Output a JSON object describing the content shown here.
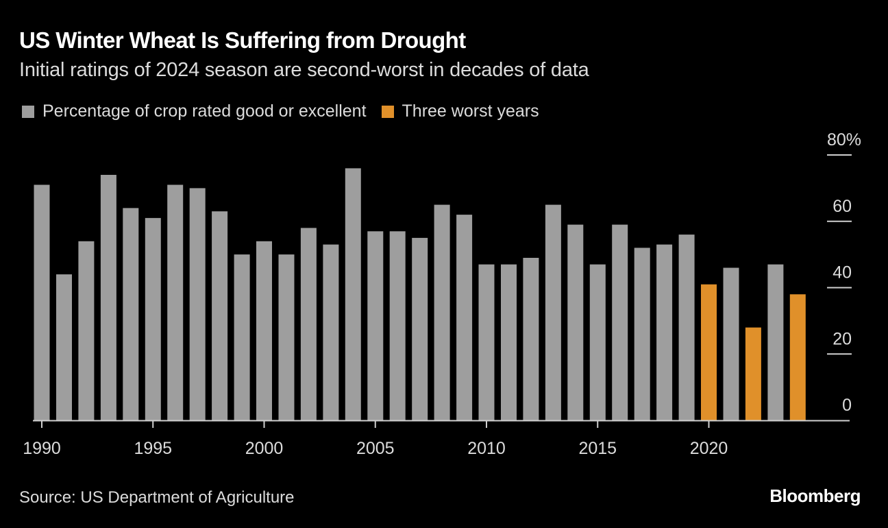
{
  "title": "US Winter Wheat Is Suffering from Drought",
  "subtitle": "Initial ratings of 2024 season are second-worst in decades of data",
  "legend": [
    {
      "label": "Percentage of crop rated good or excellent",
      "color": "#9e9e9e"
    },
    {
      "label": "Three worst years",
      "color": "#e0902a"
    }
  ],
  "source": "Source: US Department of Agriculture",
  "brand": "Bloomberg",
  "chart_data": {
    "type": "bar",
    "title": "US Winter Wheat Is Suffering from Drought",
    "subtitle": "Initial ratings of 2024 season are second-worst in decades of data",
    "xlabel": "",
    "ylabel": "",
    "ylim": [
      0,
      80
    ],
    "yticks": [
      0,
      20,
      40,
      60,
      80
    ],
    "ytick_labels": [
      "0",
      "20",
      "40",
      "60",
      "80%"
    ],
    "xticks": [
      1990,
      1995,
      2000,
      2005,
      2010,
      2015,
      2020
    ],
    "xtick_labels": [
      "1990",
      "1995",
      "2000",
      "2005",
      "2010",
      "2015",
      "2020"
    ],
    "y_axis_position": "right",
    "grid": false,
    "legend_position": "top-left",
    "categories": [
      1990,
      1991,
      1992,
      1993,
      1994,
      1995,
      1996,
      1997,
      1998,
      1999,
      2000,
      2001,
      2002,
      2003,
      2004,
      2005,
      2006,
      2007,
      2008,
      2009,
      2010,
      2011,
      2012,
      2013,
      2014,
      2015,
      2016,
      2017,
      2018,
      2019,
      2020,
      2021,
      2022,
      2023,
      2024
    ],
    "series": [
      {
        "name": "Percentage of crop rated good or excellent",
        "color": "#9e9e9e",
        "values": [
          71,
          44,
          54,
          74,
          64,
          61,
          71,
          70,
          63,
          50,
          54,
          50,
          58,
          53,
          76,
          57,
          57,
          55,
          65,
          62,
          47,
          47,
          49,
          65,
          59,
          47,
          59,
          52,
          53,
          56,
          41,
          46,
          28,
          47,
          38
        ]
      }
    ],
    "highlight": {
      "name": "Three worst years",
      "color": "#e0902a",
      "categories": [
        2020,
        2022,
        2024
      ]
    }
  }
}
